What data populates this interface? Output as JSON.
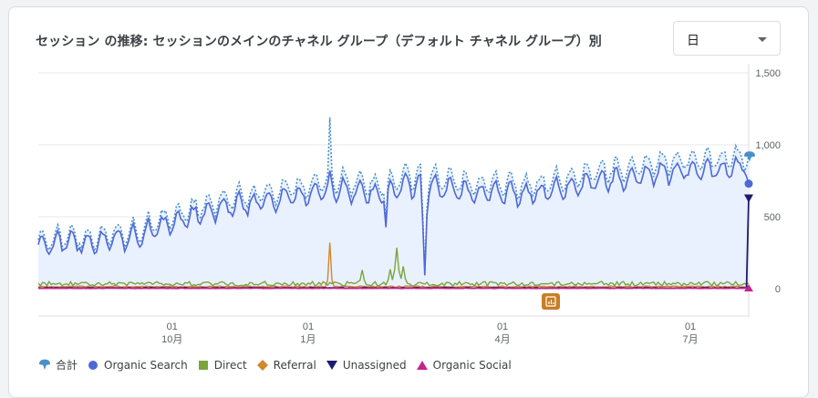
{
  "card": {
    "title": "セッション の推移: セッションのメインのチャネル グループ（デフォルト チャネル グループ）別",
    "period_select": {
      "value": "日"
    }
  },
  "colors": {
    "total": "#4a90c8",
    "organic_search": "#4f67d8",
    "direct": "#7ca43d",
    "referral": "#d2882e",
    "unassigned": "#1f1a6e",
    "organic_social": "#c2258c",
    "area_fill": "#e8f1fd",
    "gridline": "#e8eaed",
    "annotation": "#c77e24"
  },
  "icons": {
    "annotation": "chart-annotation-icon"
  },
  "chart_data": {
    "type": "line",
    "xlabel": "",
    "ylabel": "",
    "ylim": [
      0,
      1500
    ],
    "yticks": [
      "1,500",
      "1,000",
      "500",
      "0"
    ],
    "y_axis_side": "right",
    "grid": true,
    "legend_placement": "bottom-left",
    "x_ticks": [
      {
        "day": "01",
        "month": "10月"
      },
      {
        "day": "01",
        "month": "1月"
      },
      {
        "day": "01",
        "month": "4月"
      },
      {
        "day": "01",
        "month": "7月"
      }
    ],
    "legend": [
      {
        "key": "total",
        "label": "合計",
        "marker": "total-icon"
      },
      {
        "key": "organic_search",
        "label": "Organic Search",
        "marker": "circle"
      },
      {
        "key": "direct",
        "label": "Direct",
        "marker": "square"
      },
      {
        "key": "referral",
        "label": "Referral",
        "marker": "diamond"
      },
      {
        "key": "unassigned",
        "label": "Unassigned",
        "marker": "triangle-down"
      },
      {
        "key": "organic_social",
        "label": "Organic Social",
        "marker": "triangle-up"
      }
    ],
    "n_points": 330,
    "series_trend": {
      "total": {
        "base": [
          [
            0,
            340
          ],
          [
            40,
            380
          ],
          [
            80,
            600
          ],
          [
            140,
            760
          ],
          [
            160,
            700
          ],
          [
            170,
            790
          ],
          [
            185,
            760
          ],
          [
            200,
            730
          ],
          [
            230,
            720
          ],
          [
            260,
            820
          ],
          [
            290,
            880
          ],
          [
            320,
            900
          ],
          [
            326,
            920
          ],
          [
            330,
            910
          ]
        ],
        "weekly_amp": 75
      },
      "organic_search": {
        "ratio": 0.93
      },
      "direct": {
        "base": 35,
        "spikes": [
          [
            150,
            130
          ],
          [
            163,
            135
          ],
          [
            166,
            285
          ],
          [
            169,
            155
          ]
        ]
      },
      "referral": {
        "base": 15,
        "spikes": [
          [
            135,
            320
          ]
        ]
      },
      "unassigned": {
        "base": 3,
        "end_value": 630
      },
      "organic_social": {
        "base": 2
      }
    },
    "endpoint_values": {
      "total": 920,
      "organic_search": 730,
      "unassigned": 630,
      "organic_social": 5
    }
  }
}
